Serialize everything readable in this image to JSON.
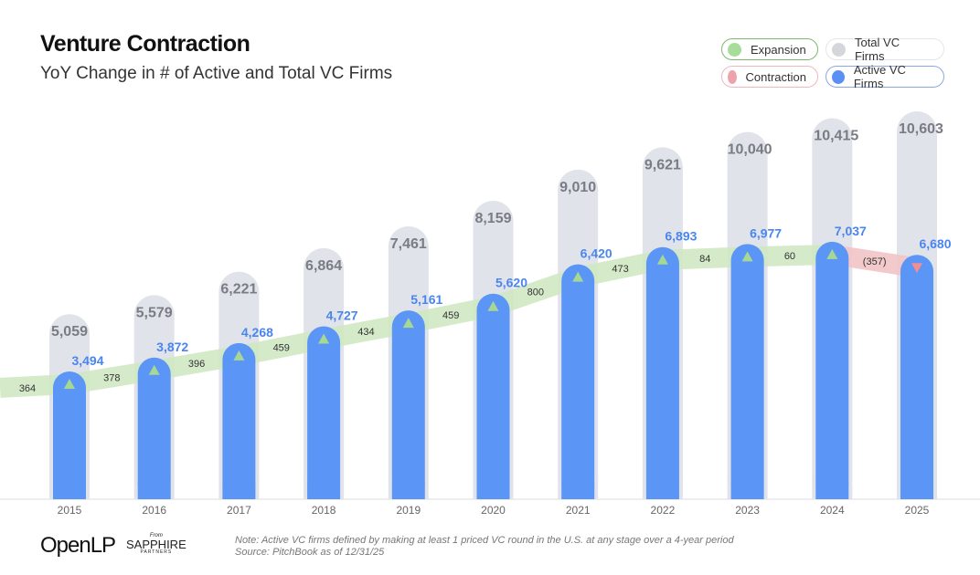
{
  "chart_data": {
    "type": "bar",
    "title": "Venture Contraction",
    "subtitle": "YoY Change in # of Active and Total VC Firms",
    "categories": [
      "2015",
      "2016",
      "2017",
      "2018",
      "2019",
      "2020",
      "2021",
      "2022",
      "2023",
      "2024",
      "2025"
    ],
    "series": [
      {
        "name": "Total VC Firms",
        "values": [
          5059,
          5579,
          6221,
          6864,
          7461,
          8159,
          9010,
          9621,
          10040,
          10415,
          10603
        ],
        "labels": [
          "5,059",
          "5,579",
          "6,221",
          "6,864",
          "7,461",
          "8,159",
          "9,010",
          "9,621",
          "10,040",
          "10,415",
          "10,603"
        ],
        "color": "#e1e3ea"
      },
      {
        "name": "Active VC Firms",
        "values": [
          3494,
          3872,
          4268,
          4727,
          5161,
          5620,
          6420,
          6893,
          6977,
          7037,
          6680
        ],
        "labels": [
          "3,494",
          "3,872",
          "4,268",
          "4,727",
          "5,161",
          "5,620",
          "6,420",
          "6,893",
          "6,977",
          "7,037",
          "6,680"
        ],
        "color": "#5b95f5"
      }
    ],
    "yoy_change": {
      "values": [
        364,
        378,
        396,
        459,
        434,
        459,
        800,
        473,
        84,
        60,
        -357
      ],
      "labels": [
        "364",
        "378",
        "396",
        "459",
        "434",
        "459",
        "800",
        "473",
        "84",
        "60",
        "(357)"
      ]
    },
    "legend": [
      {
        "label": "Expansion",
        "color": "#a8dc9a",
        "border": "#7bb86d"
      },
      {
        "label": "Total VC Firms",
        "color": "#d4d6dc",
        "border": "#e4e5ea"
      },
      {
        "label": "Contraction",
        "color": "#eda3ab",
        "border": "#f0b7bd"
      },
      {
        "label": "Active VC Firms",
        "color": "#5b8ff5",
        "border": "#8aa8e0"
      }
    ],
    "legend_placement": "top-right",
    "colors": {
      "expansion": "#cfe8c3",
      "contraction": "#f2c4c6",
      "up_arrow": "#a6d894",
      "down_arrow": "#ef8f93",
      "total_label": "#7a7c84",
      "active_label": "#4a86ef"
    }
  },
  "branding": {
    "logo": "OpenLP",
    "partner_from": "From",
    "partner": "SAPPHIRE",
    "partner_sub": "PARTNERS"
  },
  "note": "Note: Active VC firms defined by making at least 1 priced VC round in the U.S. at any stage over a 4-year period",
  "source": "Source: PitchBook as of 12/31/25"
}
